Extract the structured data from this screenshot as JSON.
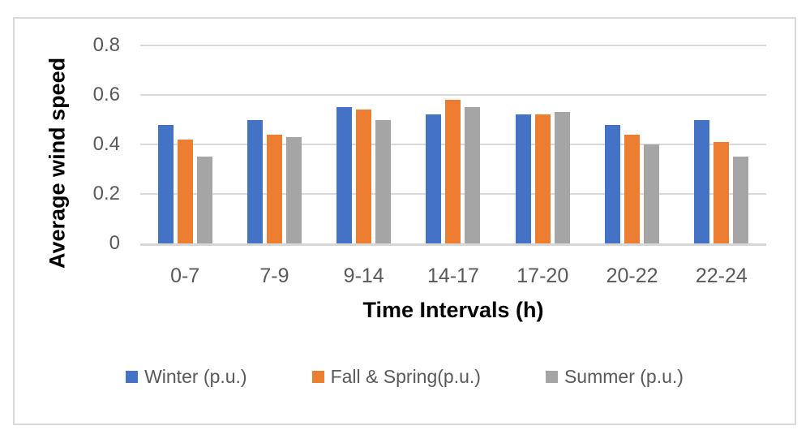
{
  "chart_data": {
    "type": "bar",
    "title": "",
    "categories": [
      "0-7",
      "7-9",
      "9-14",
      "14-17",
      "17-20",
      "20-22",
      "22-24"
    ],
    "series": [
      {
        "name": "Winter (p.u.)",
        "color": "#4472C4",
        "values": [
          0.48,
          0.5,
          0.55,
          0.52,
          0.52,
          0.48,
          0.5
        ]
      },
      {
        "name": "Fall & Spring(p.u.)",
        "color": "#ED7D31",
        "values": [
          0.42,
          0.44,
          0.54,
          0.58,
          0.52,
          0.44,
          0.41
        ]
      },
      {
        "name": "Summer (p.u.)",
        "color": "#A5A5A5",
        "values": [
          0.35,
          0.43,
          0.5,
          0.55,
          0.53,
          0.4,
          0.35
        ]
      }
    ],
    "xlabel": "Time Intervals (h)",
    "ylabel": "Average wind speed",
    "ylim": [
      0,
      0.8
    ],
    "ytick_step": 0.2,
    "yticks_top_down": [
      "0.8",
      "0.6",
      "0.4",
      "0.2",
      "0"
    ],
    "grid": "horizontal",
    "legend_position": "bottom"
  },
  "colors": {
    "gridline": "#D9D9D9",
    "axis_line": "#D6D6D6",
    "tick_text": "#595959",
    "axis_title_text": "#000000",
    "frame_border": "#D9D9D9",
    "background": "#FFFFFF"
  }
}
